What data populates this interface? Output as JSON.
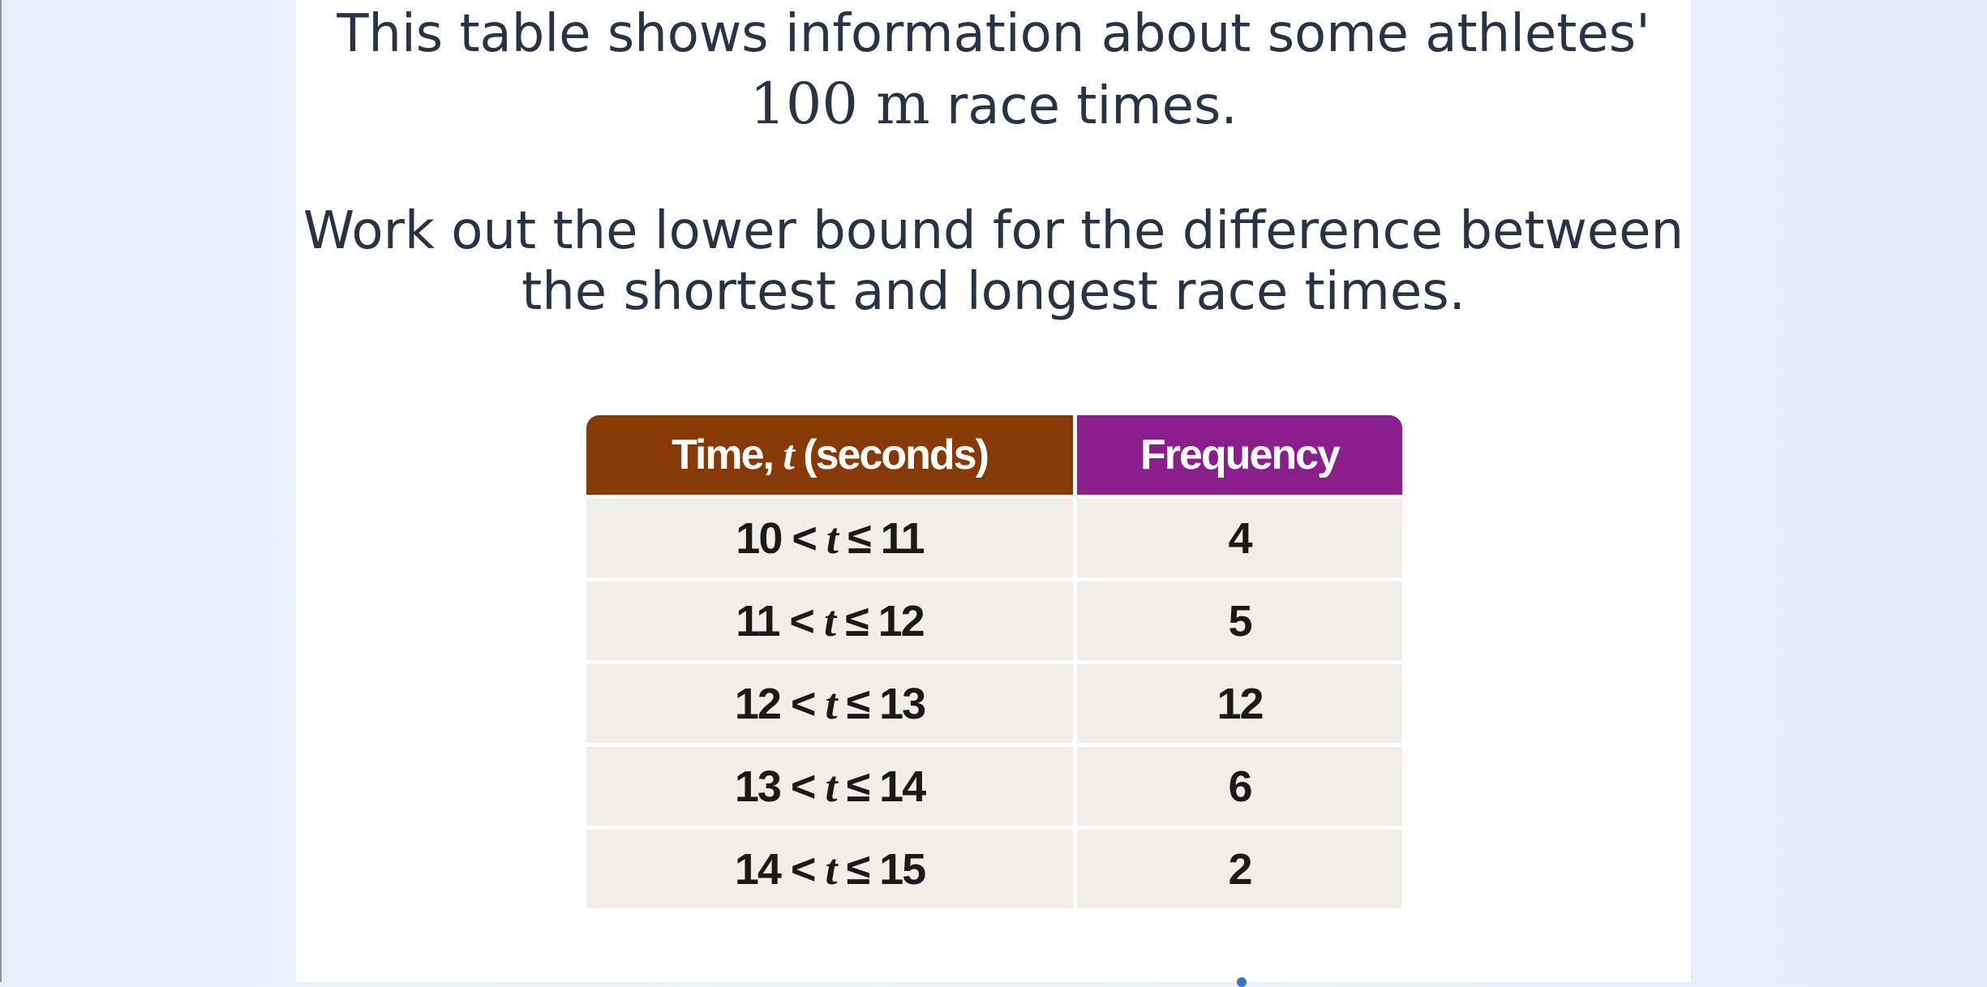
{
  "question": {
    "line1": "This table shows information about some athletes'",
    "line2_math": "100 m",
    "line2_text": " race times.",
    "instruction_line1": "Work out the lower bound for the difference between",
    "instruction_line2": "the shortest and longest race times."
  },
  "table": {
    "header_time_prefix": "Time, ",
    "header_time_var": "t",
    "header_time_suffix": " (seconds)",
    "header_frequency": "Frequency",
    "rows": [
      {
        "lower": "10",
        "op1": " < ",
        "var": "t",
        "op2": " ≤ ",
        "upper": "11",
        "frequency": "4"
      },
      {
        "lower": "11",
        "op1": " < ",
        "var": "t",
        "op2": " ≤ ",
        "upper": "12",
        "frequency": "5"
      },
      {
        "lower": "12",
        "op1": " < ",
        "var": "t",
        "op2": " ≤ ",
        "upper": "13",
        "frequency": "12"
      },
      {
        "lower": "13",
        "op1": " < ",
        "var": "t",
        "op2": " ≤ ",
        "upper": "14",
        "frequency": "6"
      },
      {
        "lower": "14",
        "op1": " < ",
        "var": "t",
        "op2": " ≤ ",
        "upper": "15",
        "frequency": "2"
      }
    ]
  },
  "colors": {
    "time_header": "#873a06",
    "frequency_header": "#891e8c",
    "cell_background": "#f1eeea",
    "text": "#2a3346"
  }
}
